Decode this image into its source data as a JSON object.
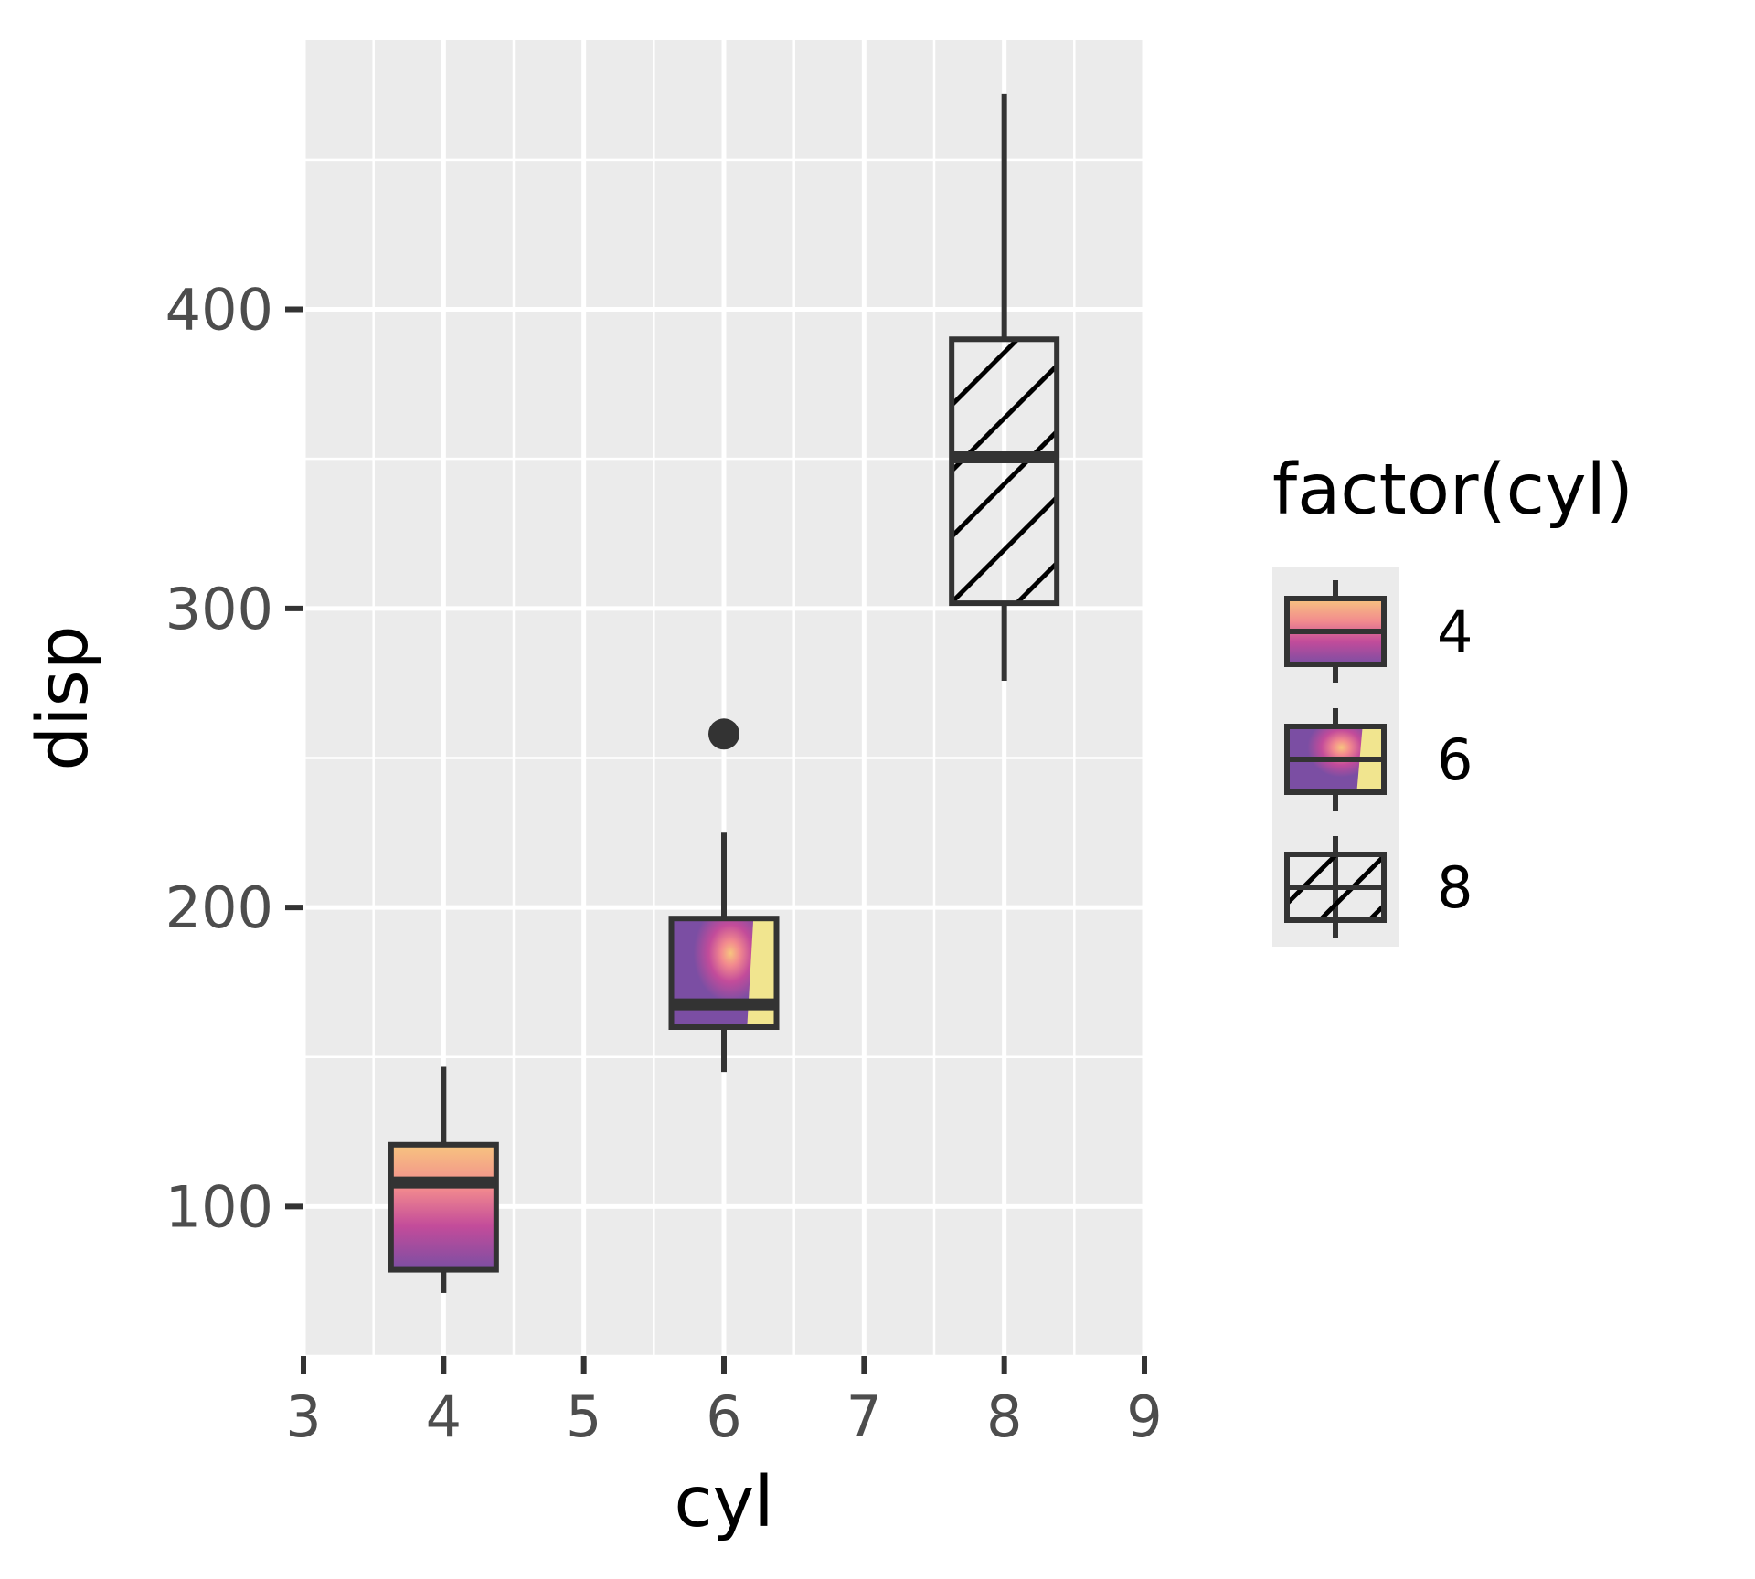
{
  "chart_data": {
    "type": "boxplot",
    "xlabel": "cyl",
    "ylabel": "disp",
    "xlim": [
      3,
      9
    ],
    "ylim": [
      50,
      490
    ],
    "x_ticks": [
      3,
      4,
      5,
      6,
      7,
      8,
      9
    ],
    "y_ticks": [
      100,
      200,
      300,
      400
    ],
    "grid": true,
    "legend": {
      "title": "factor(cyl)",
      "position": "right",
      "entries": [
        "4",
        "6",
        "8"
      ]
    },
    "series": [
      {
        "name": "4",
        "x": 4,
        "fill": "gradient-linear-magma",
        "whisker_low": 71.1,
        "q1": 78.85,
        "median": 108,
        "q3": 120.65,
        "whisker_high": 146.7,
        "outliers": []
      },
      {
        "name": "6",
        "x": 6,
        "fill": "gradient-radial-magma",
        "whisker_low": 145,
        "q1": 160,
        "median": 167.6,
        "q3": 196.3,
        "whisker_high": 225,
        "outliers": [
          258
        ]
      },
      {
        "name": "8",
        "x": 8,
        "fill": "hatch-diagonal",
        "whisker_low": 275.8,
        "q1": 301.75,
        "median": 350.5,
        "q3": 390,
        "whisker_high": 472,
        "outliers": []
      }
    ],
    "colors": {
      "panel": "#ebebeb",
      "grid": "#ffffff",
      "box_line": "#333333",
      "gradient_stops": [
        "#7b4ea3",
        "#c34c9a",
        "#f28a8e",
        "#f7c57f",
        "#f1e58f"
      ]
    }
  }
}
